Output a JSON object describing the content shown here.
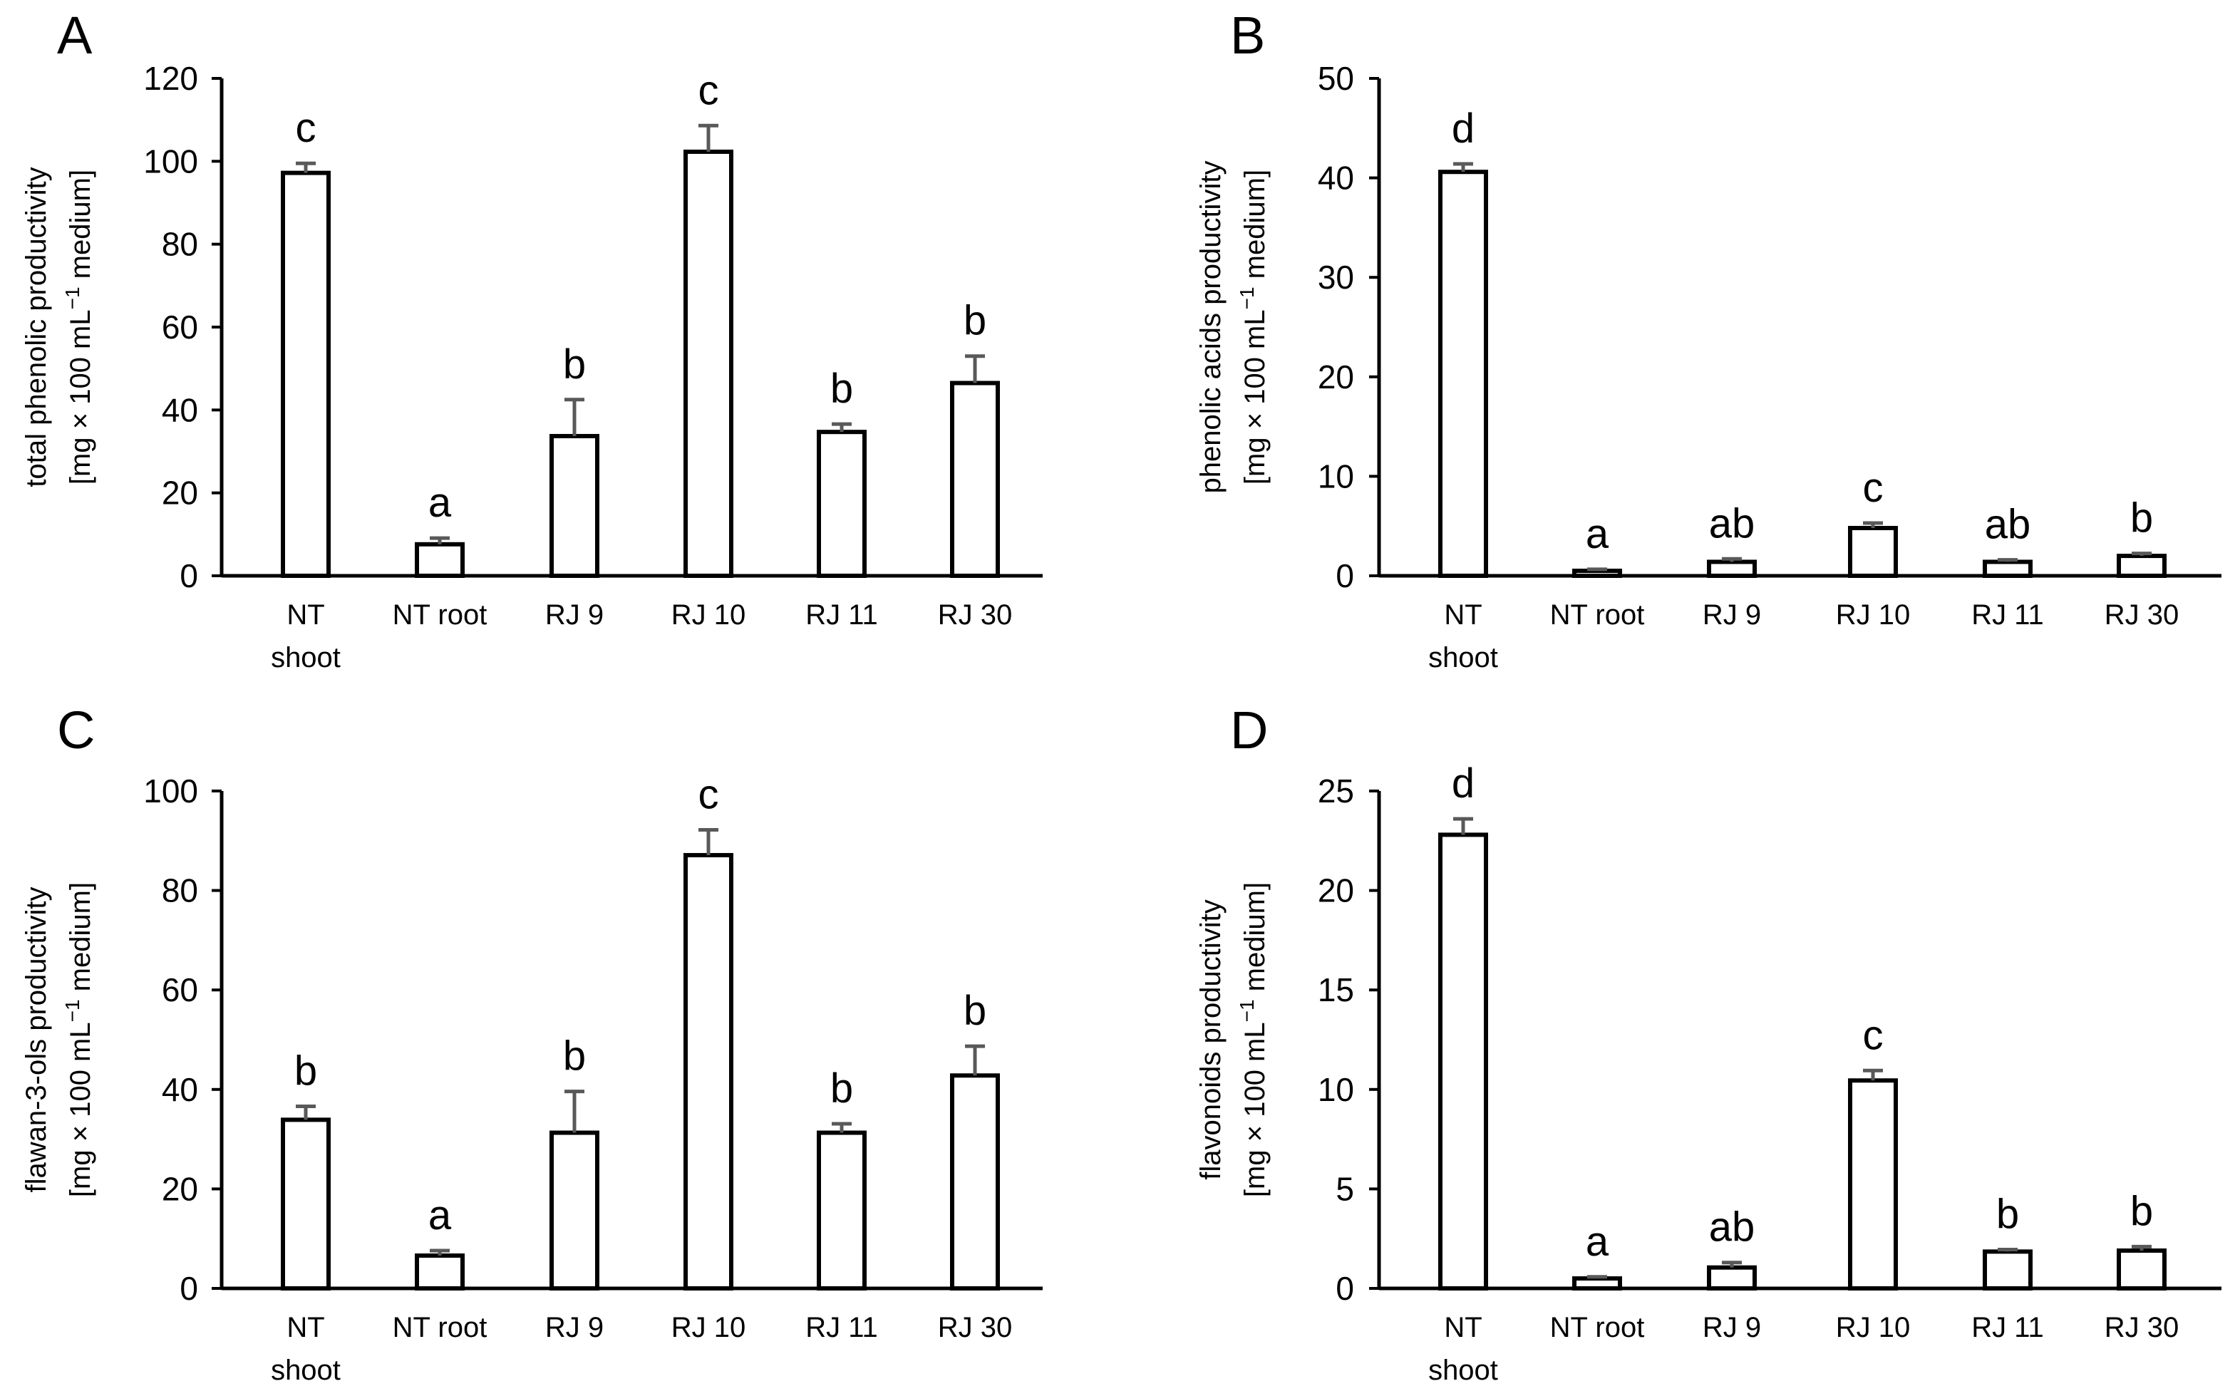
{
  "chart_data": [
    {
      "type": "bar",
      "panel_label": "A",
      "ylabel_line1": "total phenolic productivity",
      "ylabel_line2_pre": "[mg × 100 mL",
      "ylabel_sup": "−1",
      "ylabel_line2_post": " medium]",
      "ylim": [
        0,
        120
      ],
      "yticks": [
        0,
        20,
        40,
        60,
        80,
        100,
        120
      ],
      "categories": [
        {
          "line1": "NT",
          "line2": "shoot"
        },
        {
          "line1": "NT root",
          "line2": ""
        },
        {
          "line1": "RJ 9",
          "line2": ""
        },
        {
          "line1": "RJ 10",
          "line2": ""
        },
        {
          "line1": "RJ 11",
          "line2": ""
        },
        {
          "line1": "RJ 30",
          "line2": ""
        }
      ],
      "values": [
        97.2,
        7.6,
        33.7,
        102.3,
        34.7,
        46.5
      ],
      "errors": [
        2.3,
        1.5,
        8.8,
        6.3,
        1.9,
        6.5
      ],
      "letters": [
        "c",
        "a",
        "b",
        "c",
        "b",
        "b"
      ]
    },
    {
      "type": "bar",
      "panel_label": "B",
      "ylabel_line1": "phenolic acids productivity",
      "ylabel_line2_pre": "[mg × 100 mL",
      "ylabel_sup": "−1",
      "ylabel_line2_post": " medium]",
      "ylim": [
        0,
        50
      ],
      "yticks": [
        0,
        10,
        20,
        30,
        40,
        50
      ],
      "categories": [
        {
          "line1": "NT",
          "line2": "shoot"
        },
        {
          "line1": "NT root",
          "line2": ""
        },
        {
          "line1": "RJ 9",
          "line2": ""
        },
        {
          "line1": "RJ 10",
          "line2": ""
        },
        {
          "line1": "RJ 11",
          "line2": ""
        },
        {
          "line1": "RJ 30",
          "line2": ""
        }
      ],
      "values": [
        40.6,
        0.5,
        1.4,
        4.8,
        1.4,
        2.0
      ],
      "errors": [
        0.8,
        0.15,
        0.3,
        0.5,
        0.2,
        0.25
      ],
      "letters": [
        "d",
        "a",
        "ab",
        "c",
        "ab",
        "b"
      ]
    },
    {
      "type": "bar",
      "panel_label": "C",
      "ylabel_line1": "flawan-3-ols productivity",
      "ylabel_line2_pre": "[mg × 100 mL",
      "ylabel_sup": "−1",
      "ylabel_line2_post": " medium]",
      "ylim": [
        0,
        100
      ],
      "yticks": [
        0,
        20,
        40,
        60,
        80,
        100
      ],
      "categories": [
        {
          "line1": "NT",
          "line2": "shoot"
        },
        {
          "line1": "NT root",
          "line2": ""
        },
        {
          "line1": "RJ 9",
          "line2": ""
        },
        {
          "line1": "RJ 10",
          "line2": ""
        },
        {
          "line1": "RJ 11",
          "line2": ""
        },
        {
          "line1": "RJ 30",
          "line2": ""
        }
      ],
      "values": [
        33.9,
        6.6,
        31.3,
        87.1,
        31.3,
        42.8
      ],
      "errors": [
        2.7,
        1.0,
        8.3,
        5.1,
        1.8,
        5.9
      ],
      "letters": [
        "b",
        "a",
        "b",
        "c",
        "b",
        "b"
      ]
    },
    {
      "type": "bar",
      "panel_label": "D",
      "ylabel_line1": "flavonoids productivity",
      "ylabel_line2_pre": "[mg × 100 mL",
      "ylabel_sup": "−1",
      "ylabel_line2_post": " medium]",
      "ylim": [
        0,
        25
      ],
      "yticks": [
        0,
        5,
        10,
        15,
        20,
        25
      ],
      "categories": [
        {
          "line1": "NT",
          "line2": "shoot"
        },
        {
          "line1": "NT root",
          "line2": ""
        },
        {
          "line1": "RJ 9",
          "line2": ""
        },
        {
          "line1": "RJ 10",
          "line2": ""
        },
        {
          "line1": "RJ 11",
          "line2": ""
        },
        {
          "line1": "RJ 30",
          "line2": ""
        }
      ],
      "values": [
        22.8,
        0.5,
        1.05,
        10.45,
        1.85,
        1.9
      ],
      "errors": [
        0.8,
        0.08,
        0.25,
        0.5,
        0.1,
        0.2
      ],
      "letters": [
        "d",
        "a",
        "ab",
        "c",
        "b",
        "b"
      ]
    }
  ]
}
